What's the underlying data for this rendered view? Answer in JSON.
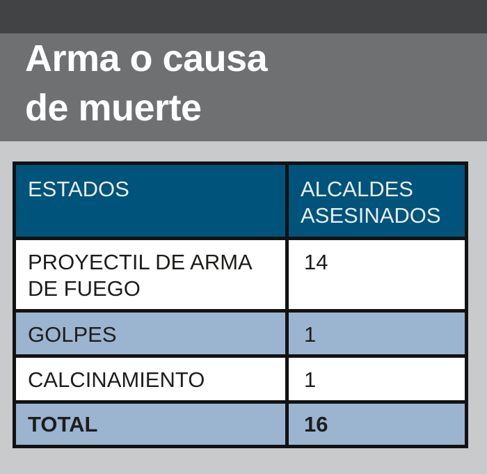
{
  "header": {
    "title_line1": "Arma o causa",
    "title_line2": "de muerte"
  },
  "table": {
    "columns": [
      "ESTADOS",
      "ALCALDES ASESINADOS"
    ],
    "rows": [
      {
        "label": "PROYECTIL DE ARMA DE FUEGO",
        "value": "14"
      },
      {
        "label": "GOLPES",
        "value": "1"
      },
      {
        "label": "CALCINAMIENTO",
        "value": "1"
      },
      {
        "label": "TOTAL",
        "value": "16"
      }
    ]
  },
  "colors": {
    "top_bar": "#424345",
    "title_band": "#6e7072",
    "page_background": "#c9cacc",
    "header_cell": "#00537a",
    "header_text": "#e9eef3",
    "row_highlight": "#9bb4d0",
    "row_white": "#ffffff",
    "border": "#121212",
    "body_text": "#1d1d1b",
    "title_text": "#ffffff"
  },
  "chart_data": {
    "type": "table",
    "title": "Arma o causa de muerte",
    "columns": [
      "ESTADOS",
      "ALCALDES ASESINADOS"
    ],
    "rows": [
      [
        "PROYECTIL DE ARMA DE FUEGO",
        14
      ],
      [
        "GOLPES",
        1
      ],
      [
        "CALCINAMIENTO",
        1
      ],
      [
        "TOTAL",
        16
      ]
    ]
  }
}
